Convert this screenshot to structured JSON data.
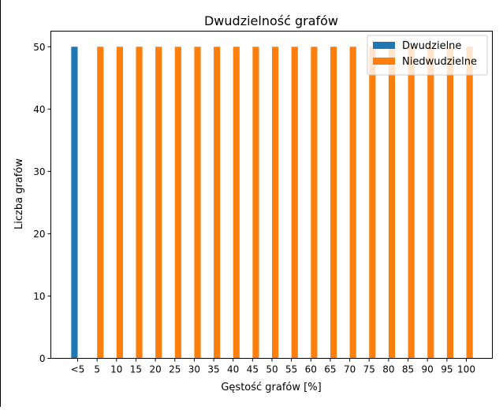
{
  "chart_data": {
    "type": "bar",
    "title": "Dwudzielność grafów",
    "xlabel": "Gęstość grafów [%]",
    "ylabel": "Liczba grafów",
    "categories": [
      "<5",
      "5",
      "10",
      "15",
      "20",
      "25",
      "30",
      "35",
      "40",
      "45",
      "50",
      "55",
      "60",
      "65",
      "70",
      "75",
      "80",
      "85",
      "90",
      "95",
      "100"
    ],
    "series": [
      {
        "name": "Dwudzielne",
        "color": "#1f77b4",
        "values": [
          50,
          0,
          0,
          0,
          0,
          0,
          0,
          0,
          0,
          0,
          0,
          0,
          0,
          0,
          0,
          0,
          0,
          0,
          0,
          0,
          0
        ]
      },
      {
        "name": "Niedwudzielne",
        "color": "#ff7f0e",
        "values": [
          0,
          50,
          50,
          50,
          50,
          50,
          50,
          50,
          50,
          50,
          50,
          50,
          50,
          50,
          50,
          50,
          50,
          50,
          50,
          50,
          50
        ]
      }
    ],
    "ylim": [
      0,
      52.5
    ],
    "yticks": [
      0,
      10,
      20,
      30,
      40,
      50
    ],
    "grid": false,
    "legend": "top-right"
  }
}
